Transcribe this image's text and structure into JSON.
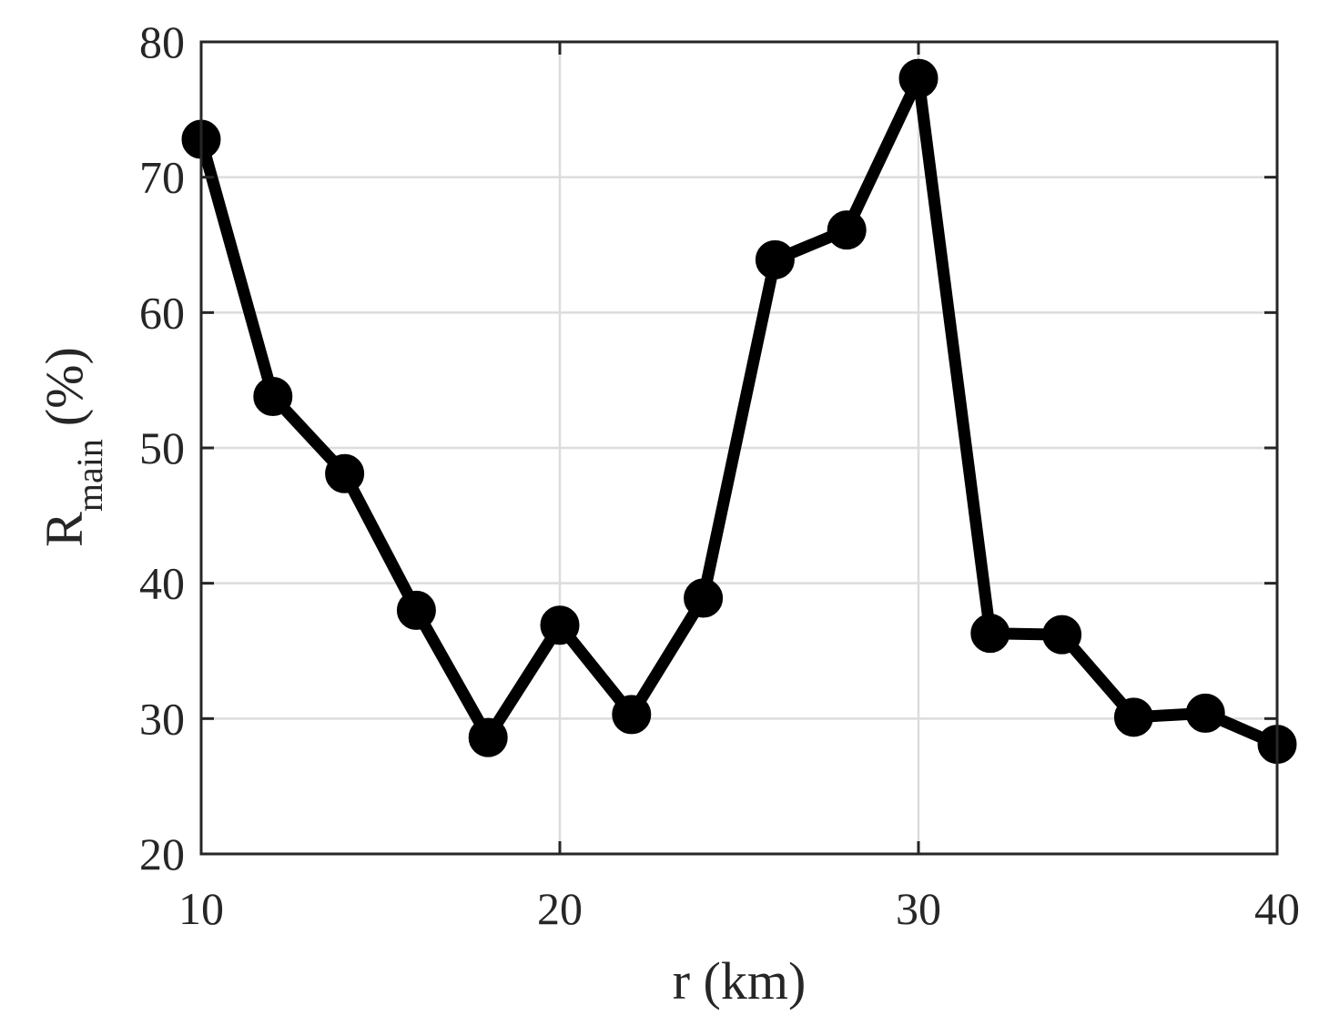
{
  "chart_data": {
    "type": "line",
    "title": "",
    "xlabel": "r (km)",
    "ylabel": {
      "main": "R",
      "subscript": "main",
      "suffix": "(%)"
    },
    "xlim": [
      10,
      40
    ],
    "ylim": [
      20,
      80
    ],
    "xticks": [
      10,
      20,
      30,
      40
    ],
    "yticks": [
      20,
      30,
      40,
      50,
      60,
      70,
      80
    ],
    "grid": true,
    "series": [
      {
        "color": "#000000",
        "marker": "filled-circle",
        "x": [
          10,
          12,
          14,
          16,
          18,
          20,
          22,
          24,
          26,
          28,
          30,
          32,
          34,
          36,
          38,
          40
        ],
        "y": [
          72.8,
          53.8,
          48.1,
          38.0,
          28.6,
          36.9,
          30.3,
          38.9,
          63.9,
          66.1,
          77.3,
          36.3,
          36.2,
          30.1,
          30.4,
          28.1
        ]
      }
    ]
  }
}
